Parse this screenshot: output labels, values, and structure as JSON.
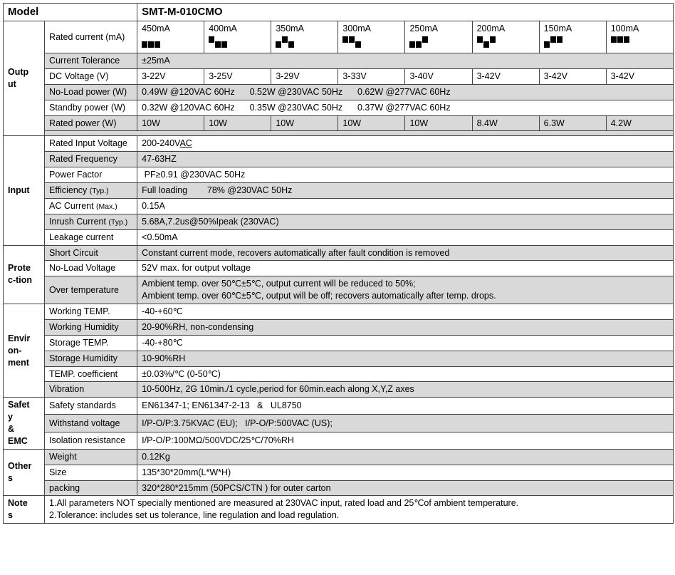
{
  "header": {
    "model_label": "Model",
    "model_value": "SMT-M-010CMO"
  },
  "output": {
    "section": "Outp\nut",
    "rated_current_label": "Rated current (mA)",
    "currents": [
      "450mA",
      "400mA",
      "350mA",
      "300mA",
      "250mA",
      "200mA",
      "150mA",
      "100mA"
    ],
    "dip": [
      [
        "d",
        "d",
        "d"
      ],
      [
        "u",
        "d",
        "d"
      ],
      [
        "d",
        "u",
        "d"
      ],
      [
        "u",
        "u",
        "d"
      ],
      [
        "d",
        "d",
        "u"
      ],
      [
        "u",
        "d",
        "u"
      ],
      [
        "d",
        "u",
        "u"
      ],
      [
        "u",
        "u",
        "u"
      ]
    ],
    "tol_label": "Current Tolerance",
    "tol_value": "±25mA",
    "dcv_label": "DC Voltage (V)",
    "dcv": [
      "3-22V",
      "3-25V",
      "3-29V",
      "3-33V",
      "3-40V",
      "3-42V",
      "3-42V",
      "3-42V"
    ],
    "noload_label": "No-Load power (W)",
    "noload_value": "0.49W @120VAC 60Hz      0.52W @230VAC 50Hz      0.62W @277VAC 60Hz",
    "standby_label": "Standby power (W)",
    "standby_value": "0.32W @120VAC 60Hz      0.35W @230VAC 50Hz      0.37W @277VAC 60Hz",
    "rpower_label": "Rated power (W)",
    "rpower": [
      "10W",
      "10W",
      "10W",
      "10W",
      "10W",
      "8.4W",
      "6.3W",
      "4.2W"
    ]
  },
  "input": {
    "section": "Input",
    "riv_label": "Rated Input Voltage",
    "riv_value": "200-240VAC",
    "rf_label": "Rated Frequency",
    "rf_value": "47-63HZ",
    "pf_label": "Power Factor",
    "pf_value": " PF≥0.91 @230VAC 50Hz",
    "eff_label": "Efficiency (Typ.)",
    "eff_value": "Full loading        78% @230VAC 50Hz",
    "acc_label": "AC Current (Max.)",
    "acc_value": "0.15A",
    "inr_label": "Inrush Current (Typ.)",
    "inr_value": "5.68A,7.2us@50%Ipeak (230VAC)",
    "lc_label": "Leakage current",
    "lc_value": "<0.50mA"
  },
  "prot": {
    "section": "Prote\nc-tion",
    "sc_label": "Short Circuit",
    "sc_value": "Constant current mode, recovers automatically after fault condition is removed",
    "nlv_label": "No-Load Voltage",
    "nlv_value": "52V max. for output voltage",
    "ot_label": "Over temperature",
    "ot_value": "Ambient temp. over 50℃±5℃, output current will be reduced to 50%;\nAmbient temp. over 60℃±5℃, output will be off; recovers automatically after temp. drops."
  },
  "env": {
    "section": "Envir\non-\nment",
    "wt_label": "Working TEMP.",
    "wt_value": "-40-+60℃",
    "wh_label": "Working Humidity",
    "wh_value": "20-90%RH, non-condensing",
    "st_label": "Storage TEMP.",
    "st_value": "-40-+80℃",
    "sh_label": "Storage Humidity",
    "sh_value": "10-90%RH",
    "tc_label": "TEMP. coefficient",
    "tc_value": "±0.03%/℃ (0-50℃)",
    "vb_label": "Vibration",
    "vb_value": "10-500Hz, 2G 10min./1 cycle,period for 60min.each along X,Y,Z axes"
  },
  "safety": {
    "section": "Safet\ny\n&\nEMC",
    "ss_label": "Safety standards",
    "ss_value": "EN61347-1; EN61347-2-13   &   UL8750",
    "wv_label": "Withstand voltage",
    "wv_value": "I/P-O/P:3.75KVAC (EU);   I/P-O/P:500VAC (US);",
    "ir_label": "Isolation resistance",
    "ir_value": "I/P-O/P:100MΩ/500VDC/25℃/70%RH"
  },
  "other": {
    "section": "Other\ns",
    "w_label": "Weight",
    "w_value": "0.12Kg",
    "sz_label": "Size",
    "sz_value": "135*30*20mm(L*W*H)",
    "pk_label": "packing",
    "pk_value": "320*280*215mm (50PCS/CTN ) for outer carton"
  },
  "notes": {
    "section": "Note\ns",
    "value": "1.All parameters NOT specially mentioned are measured at 230VAC input, rated load and 25℃of ambient temperature.\n2.Tolerance: includes set us tolerance, line regulation and load regulation."
  },
  "colors": {
    "shade": "#d9d9d9",
    "border": "#444",
    "bg": "#fff"
  }
}
